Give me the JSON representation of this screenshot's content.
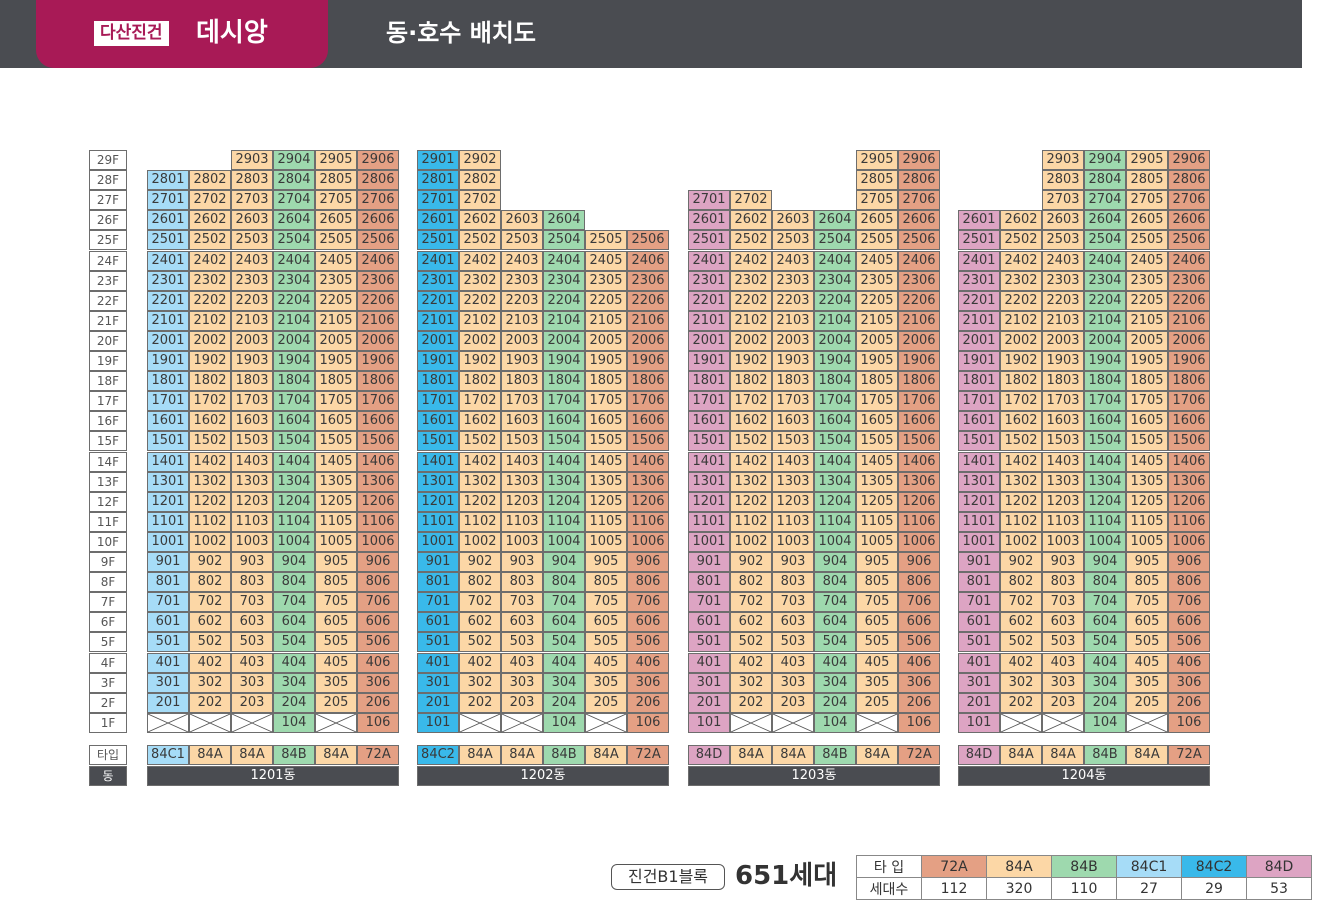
{
  "header": {
    "badge": "다산진건",
    "brand": "데시앙",
    "title": "동·호수 배치도"
  },
  "colors": {
    "84C1": "#a6dcf7",
    "84C2": "#39b9ea",
    "84D": "#dda4c3",
    "84A": "#fcd7a6",
    "84B": "#9ed9ae",
    "72A": "#e4a084",
    "empty": "#ffffff",
    "header_bg": "#4a4c51",
    "brand": "#a81a56"
  },
  "floor_labels": [
    "29F",
    "28F",
    "27F",
    "26F",
    "25F",
    "24F",
    "23F",
    "22F",
    "21F",
    "20F",
    "19F",
    "18F",
    "17F",
    "16F",
    "15F",
    "14F",
    "13F",
    "12F",
    "11F",
    "10F",
    "9F",
    "8F",
    "7F",
    "6F",
    "5F",
    "4F",
    "3F",
    "2F",
    "1F"
  ],
  "row_labels": {
    "type": "타입",
    "building": "동"
  },
  "buildings": [
    {
      "name": "1201동",
      "types": [
        "84C1",
        "84A",
        "84A",
        "84B",
        "84A",
        "72A"
      ],
      "top_floor": [
        28,
        28,
        29,
        29,
        29,
        29
      ],
      "first_floor": [
        "x",
        "x",
        "x",
        "104",
        "x",
        "106"
      ]
    },
    {
      "name": "1202동",
      "types": [
        "84C2",
        "84A",
        "84A",
        "84B",
        "84A",
        "72A"
      ],
      "top_floor": [
        29,
        29,
        26,
        26,
        25,
        25
      ],
      "first_floor": [
        "101",
        "x",
        "x",
        "104",
        "x",
        "106"
      ]
    },
    {
      "name": "1203동",
      "types": [
        "84D",
        "84A",
        "84A",
        "84B",
        "84A",
        "72A"
      ],
      "top_floor": [
        27,
        27,
        26,
        26,
        29,
        29
      ],
      "first_floor": [
        "101",
        "x",
        "x",
        "104",
        "x",
        "106"
      ]
    },
    {
      "name": "1204동",
      "types": [
        "84D",
        "84A",
        "84A",
        "84B",
        "84A",
        "72A"
      ],
      "top_floor": [
        26,
        26,
        29,
        29,
        29,
        29
      ],
      "first_floor": [
        "101",
        "x",
        "x",
        "104",
        "x",
        "106"
      ]
    }
  ],
  "summary": {
    "block": "진건B1블록",
    "total": "651세대",
    "legend_header": [
      "타 입",
      "72A",
      "84A",
      "84B",
      "84C1",
      "84C2",
      "84D"
    ],
    "legend_counts": [
      "세대수",
      "112",
      "320",
      "110",
      "27",
      "29",
      "53"
    ]
  }
}
